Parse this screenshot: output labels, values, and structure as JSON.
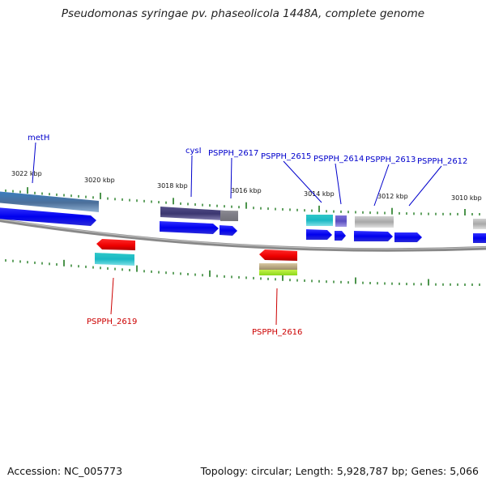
{
  "title": "Pseudomonas syringae pv. phaseolicola 1448A, complete genome",
  "scale": [
    "3022 kbp",
    "3020 kbp",
    "3018 kbp",
    "3016 kbp",
    "3014 kbp",
    "3012 kbp",
    "3010 kbp"
  ],
  "genes": {
    "metH": "metH",
    "cysI": "cysI",
    "g2617": "PSPPH_2617",
    "g2615": "PSPPH_2615",
    "g2614": "PSPPH_2614",
    "g2613": "PSPPH_2613",
    "g2612": "PSPPH_2612",
    "g2619": "PSPPH_2619",
    "g2616": "PSPPH_2616"
  },
  "colors": {
    "forward_gene": "#0000ee",
    "reverse_gene": "#ee0000",
    "forward_label": "#0000cc",
    "reverse_label": "#cc0000",
    "tick": "#1f7a1f",
    "backbone": "#808080"
  },
  "footer": {
    "accession": "Accession: NC_005773",
    "stats": "Topology: circular; Length: 5,928,787 bp; Genes: 5,066"
  }
}
